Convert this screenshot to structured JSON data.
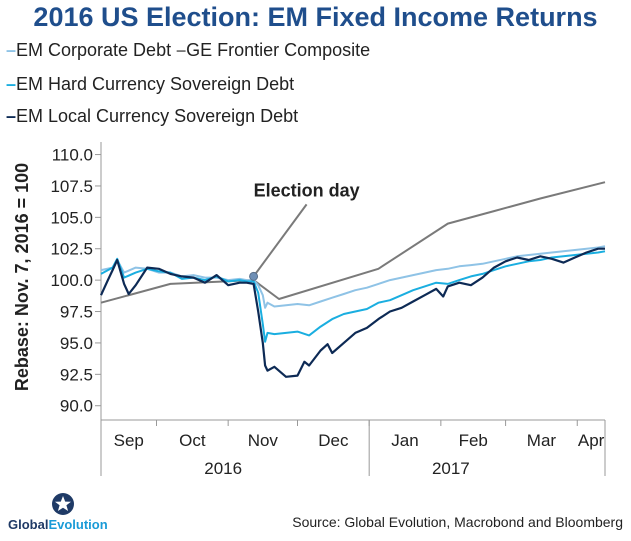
{
  "title": "2016 US Election: EM Fixed Income Returns",
  "source": "Source: Global Evolution, Macrobond and Bloomberg",
  "logo": {
    "part1": "Global",
    "part2": "Evolution"
  },
  "colors": {
    "corporate": "#8fc3e6",
    "frontier": "#7a7a7a",
    "hard": "#1aaee0",
    "local": "#0d2a55",
    "axis": "#999999"
  },
  "chart_data": {
    "type": "line",
    "ylabel": "Rebase: Nov. 7, 2016 = 100",
    "ylim": [
      89.5,
      111
    ],
    "yticks": [
      "110.0",
      "107.5",
      "105.0",
      "102.5",
      "100.0",
      "97.5",
      "95.0",
      "92.5",
      "90.0"
    ],
    "x_month_labels": [
      "Sep",
      "Oct",
      "Nov",
      "Dec",
      "Jan",
      "Feb",
      "Mar",
      "Apr"
    ],
    "x_year_labels": [
      "2016",
      "2017"
    ],
    "annotation": {
      "text": "Election day",
      "x": 66,
      "y": 100.3
    },
    "series": [
      {
        "name": "GE Frontier Composite",
        "key": "frontier",
        "x": [
          0,
          30,
          66,
          77,
          120,
          150,
          170,
          190,
          218
        ],
        "y": [
          98.2,
          99.7,
          100.0,
          98.5,
          100.9,
          104.5,
          105.5,
          106.5,
          107.8
        ]
      },
      {
        "name": "EM Corporate Debt",
        "key": "corporate",
        "x": [
          0,
          5,
          7,
          10,
          15,
          20,
          25,
          30,
          35,
          40,
          45,
          50,
          55,
          60,
          63,
          66,
          68,
          70,
          71,
          72,
          75,
          80,
          85,
          90,
          95,
          100,
          105,
          110,
          115,
          120,
          125,
          130,
          135,
          140,
          145,
          150,
          155,
          160,
          165,
          170,
          175,
          180,
          185,
          190,
          195,
          200,
          205,
          210,
          215,
          218
        ],
        "y": [
          100.8,
          101.0,
          101.6,
          100.6,
          101.0,
          100.9,
          100.6,
          100.6,
          100.3,
          100.4,
          100.2,
          100.2,
          100.0,
          100.1,
          100.0,
          100.0,
          99.6,
          98.8,
          97.8,
          98.2,
          97.9,
          98.0,
          98.1,
          98.0,
          98.3,
          98.6,
          98.9,
          99.2,
          99.4,
          99.7,
          100.0,
          100.2,
          100.4,
          100.6,
          100.8,
          100.9,
          101.1,
          101.2,
          101.3,
          101.5,
          101.7,
          101.9,
          102.0,
          102.1,
          102.2,
          102.3,
          102.4,
          102.5,
          102.6,
          102.7
        ]
      },
      {
        "name": "EM Hard Currency Sovereign Debt",
        "key": "hard",
        "x": [
          0,
          5,
          7,
          10,
          15,
          20,
          25,
          30,
          35,
          40,
          45,
          50,
          55,
          60,
          63,
          66,
          68,
          70,
          71,
          72,
          75,
          80,
          85,
          90,
          95,
          100,
          105,
          110,
          115,
          120,
          125,
          130,
          135,
          140,
          145,
          150,
          155,
          160,
          165,
          170,
          175,
          180,
          185,
          190,
          195,
          200,
          205,
          210,
          215,
          218
        ],
        "y": [
          100.5,
          101.0,
          101.7,
          100.2,
          100.6,
          100.9,
          100.7,
          100.6,
          100.1,
          100.2,
          100.0,
          100.3,
          99.9,
          100.0,
          99.9,
          99.9,
          99.0,
          96.5,
          95.1,
          95.8,
          95.7,
          95.8,
          95.9,
          95.6,
          96.3,
          96.9,
          97.3,
          97.5,
          97.7,
          98.2,
          98.4,
          98.8,
          99.2,
          99.5,
          99.8,
          99.7,
          100.0,
          100.3,
          100.5,
          100.8,
          101.1,
          101.3,
          101.5,
          101.6,
          101.8,
          101.9,
          102.0,
          102.1,
          102.2,
          102.3
        ]
      },
      {
        "name": "EM Local Currency Sovereign Debt",
        "key": "local",
        "x": [
          0,
          3,
          5,
          7,
          10,
          12,
          15,
          20,
          25,
          30,
          35,
          40,
          45,
          50,
          55,
          60,
          63,
          66,
          68,
          70,
          71,
          72,
          75,
          80,
          85,
          88,
          90,
          95,
          98,
          100,
          105,
          110,
          115,
          120,
          125,
          130,
          135,
          140,
          145,
          148,
          150,
          155,
          160,
          165,
          170,
          175,
          180,
          185,
          190,
          195,
          200,
          205,
          210,
          215,
          218
        ],
        "y": [
          98.8,
          100.0,
          100.8,
          101.6,
          99.7,
          98.9,
          99.6,
          101.0,
          100.9,
          100.5,
          100.3,
          100.2,
          99.8,
          100.4,
          99.6,
          99.8,
          99.8,
          99.7,
          97.5,
          95.0,
          93.2,
          92.8,
          93.1,
          92.3,
          92.4,
          93.5,
          93.2,
          94.4,
          94.9,
          94.2,
          95.0,
          95.8,
          96.2,
          96.9,
          97.5,
          97.8,
          98.3,
          98.8,
          99.3,
          98.7,
          99.5,
          99.8,
          99.6,
          100.2,
          101.0,
          101.5,
          101.8,
          101.6,
          101.9,
          101.7,
          101.4,
          101.8,
          102.2,
          102.5,
          102.5
        ]
      }
    ]
  }
}
